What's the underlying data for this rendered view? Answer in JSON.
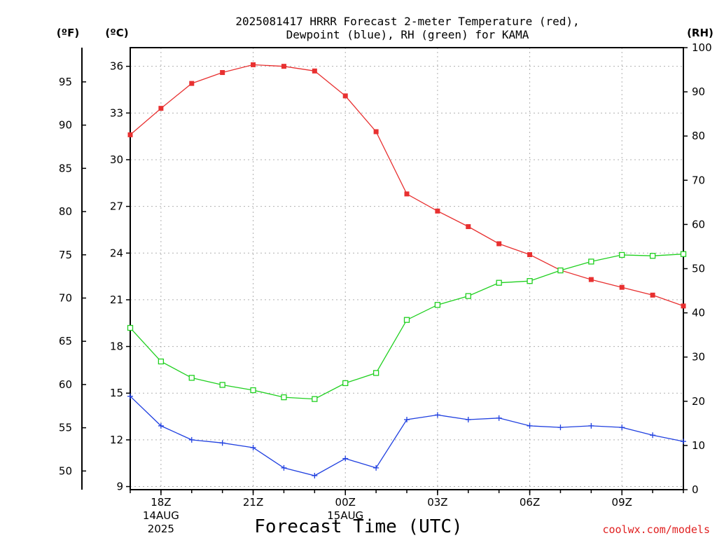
{
  "title_line1": "2025081417 HRRR Forecast 2-meter Temperature (red),",
  "title_line2": "Dewpoint (blue), RH (green) for KAMA",
  "unit_f": "(ºF)",
  "unit_c": "(ºC)",
  "unit_rh": "(RH)",
  "xlabel": "Forecast Time (UTC)",
  "credit": "coolwx.com/models",
  "colors": {
    "temperature": "#e83030",
    "dewpoint": "#2040e0",
    "rh": "#20d020",
    "credit": "#e02020",
    "grid": "#b0b0b0"
  },
  "chart_data": {
    "type": "line",
    "title": "2025081417 HRRR Forecast 2-meter Temperature (red), Dewpoint (blue), RH (green) for KAMA",
    "xlabel": "Forecast Time (UTC)",
    "x": [
      "17Z",
      "18Z",
      "19Z",
      "20Z",
      "21Z",
      "22Z",
      "23Z",
      "00Z",
      "01Z",
      "02Z",
      "03Z",
      "04Z",
      "05Z",
      "06Z",
      "07Z",
      "08Z",
      "09Z",
      "10Z",
      "11Z"
    ],
    "x_tick_labels": [
      {
        "hour": "18Z",
        "line2": "14AUG",
        "line3": "2025"
      },
      {
        "hour": "21Z",
        "line2": "",
        "line3": ""
      },
      {
        "hour": "00Z",
        "line2": "15AUG",
        "line3": ""
      },
      {
        "hour": "03Z",
        "line2": "",
        "line3": ""
      },
      {
        "hour": "06Z",
        "line2": "",
        "line3": ""
      },
      {
        "hour": "09Z",
        "line2": "",
        "line3": ""
      }
    ],
    "y_left_c": {
      "ticks": [
        9,
        12,
        15,
        18,
        21,
        24,
        27,
        30,
        33,
        36
      ],
      "ylim": [
        8.8,
        37.2
      ]
    },
    "y_left_f": {
      "ticks": [
        50,
        55,
        60,
        65,
        70,
        75,
        80,
        85,
        90,
        95
      ]
    },
    "y_right_rh": {
      "ticks": [
        0,
        10,
        20,
        30,
        40,
        50,
        60,
        70,
        80,
        90,
        100
      ],
      "ylim": [
        0,
        100
      ]
    },
    "series": [
      {
        "name": "Temperature",
        "axis": "C",
        "marker": "filled-square",
        "values": [
          31.6,
          33.3,
          34.9,
          35.6,
          36.1,
          36.0,
          35.7,
          34.1,
          31.8,
          27.8,
          26.7,
          25.7,
          24.6,
          23.9,
          22.9,
          22.3,
          21.8,
          21.3,
          20.6
        ]
      },
      {
        "name": "Dewpoint",
        "axis": "C",
        "marker": "plus",
        "values": [
          14.8,
          12.9,
          12.0,
          11.8,
          11.5,
          10.2,
          9.7,
          10.8,
          10.2,
          13.3,
          13.6,
          13.3,
          13.4,
          12.9,
          12.8,
          12.9,
          12.8,
          12.3,
          11.9
        ]
      },
      {
        "name": "RH",
        "axis": "RH",
        "marker": "open-square",
        "values": [
          36.6,
          29.0,
          25.3,
          23.7,
          22.5,
          20.9,
          20.5,
          24.1,
          26.4,
          38.4,
          41.8,
          43.8,
          46.8,
          47.2,
          49.6,
          51.6,
          53.1,
          52.9,
          53.3
        ]
      }
    ],
    "grid": true
  }
}
